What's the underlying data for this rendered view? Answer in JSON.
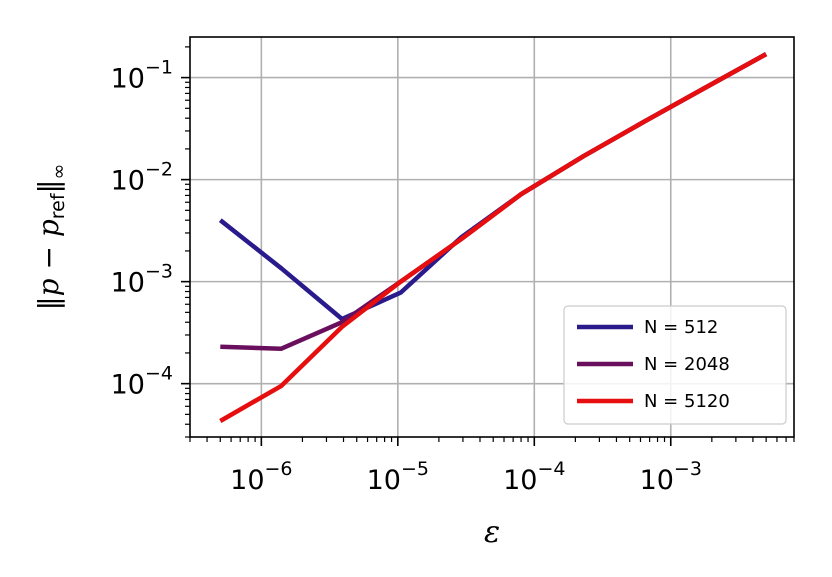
{
  "chart_data": {
    "type": "line",
    "xscale": "log",
    "yscale": "log",
    "xlim": [
      3e-07,
      0.008
    ],
    "ylim": [
      3e-05,
      0.25
    ],
    "grid": true,
    "xlabel": "ε",
    "ylabel": "‖p − p_ref‖∞",
    "ylabel_parts": {
      "bars_open": "‖",
      "var": "p",
      "minus": " − ",
      "sub_var": "p",
      "sub": "ref",
      "bars_close": "‖",
      "norm_sub": "∞"
    },
    "x_ticks": [
      {
        "value": 1e-06,
        "base": "10",
        "exp": "−6"
      },
      {
        "value": 1e-05,
        "base": "10",
        "exp": "−5"
      },
      {
        "value": 0.0001,
        "base": "10",
        "exp": "−4"
      },
      {
        "value": 0.001,
        "base": "10",
        "exp": "−3"
      }
    ],
    "y_ticks": [
      {
        "value": 0.0001,
        "base": "10",
        "exp": "−4"
      },
      {
        "value": 0.001,
        "base": "10",
        "exp": "−3"
      },
      {
        "value": 0.01,
        "base": "10",
        "exp": "−2"
      },
      {
        "value": 0.1,
        "base": "10",
        "exp": "−1"
      }
    ],
    "legend_position": "lower-right",
    "series": [
      {
        "name": "N = 512",
        "color": "#2a1b8c",
        "x": [
          5e-07,
          1.4e-06,
          3.9e-06,
          1.05e-05,
          2.9e-05,
          8e-05,
          0.00023,
          0.00064,
          0.0018,
          0.005
        ],
        "y": [
          0.004,
          0.00135,
          0.00043,
          0.00078,
          0.0027,
          0.0072,
          0.017,
          0.037,
          0.08,
          0.17
        ]
      },
      {
        "name": "N = 2048",
        "color": "#6a0f5e",
        "x": [
          5e-07,
          1.4e-06,
          3.9e-06,
          1.05e-05,
          2.9e-05,
          8e-05,
          0.00023,
          0.00064,
          0.0018,
          0.005
        ],
        "y": [
          0.00023,
          0.00022,
          0.0004,
          0.001,
          0.0026,
          0.0072,
          0.017,
          0.037,
          0.08,
          0.17
        ]
      },
      {
        "name": "N = 5120",
        "color": "#e60e0e",
        "x": [
          5e-07,
          1.4e-06,
          3.9e-06,
          1.05e-05,
          2.9e-05,
          8e-05,
          0.00023,
          0.00064,
          0.0018,
          0.005
        ],
        "y": [
          4.3e-05,
          9.5e-05,
          0.00036,
          0.001,
          0.0026,
          0.0072,
          0.017,
          0.037,
          0.08,
          0.17
        ]
      }
    ]
  }
}
